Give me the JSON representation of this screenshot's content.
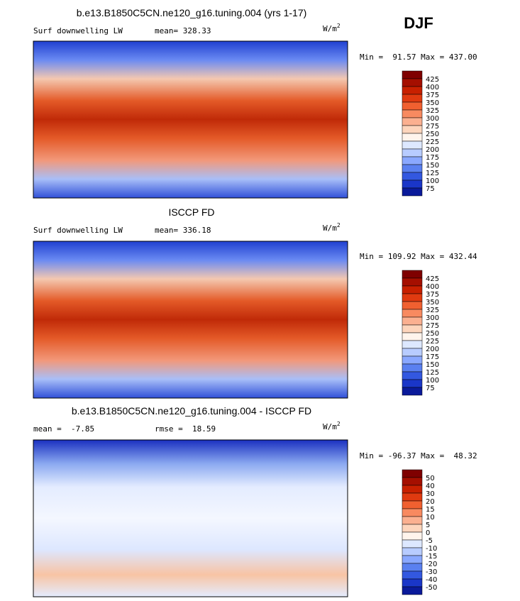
{
  "season": "DJF",
  "panels": [
    {
      "title": "b.e13.B1850C5CN.ne120_g16.tuning.004 (yrs 1-17)",
      "left_label": "Surf downwelling LW",
      "stat": "mean= 328.33",
      "units": "W/m",
      "units_sup": "2",
      "min_max": "Min =  91.57 Max = 437.00",
      "levels": [
        425,
        400,
        375,
        350,
        325,
        300,
        275,
        250,
        225,
        200,
        175,
        150,
        125,
        100,
        75
      ],
      "colors": [
        "#7f0000",
        "#a50f00",
        "#c82000",
        "#e03a10",
        "#f06030",
        "#f88a60",
        "#fbb090",
        "#fdd5bc",
        "#fff4ec",
        "#dde8ff",
        "#b8ccff",
        "#8aa8ff",
        "#5a80f0",
        "#3358e0",
        "#1a36c8",
        "#0a1a9a"
      ]
    },
    {
      "title": "ISCCP FD",
      "left_label": "Surf downwelling LW",
      "stat": "mean= 336.18",
      "units": "W/m",
      "units_sup": "2",
      "min_max": "Min = 109.92 Max = 432.44",
      "levels": [
        425,
        400,
        375,
        350,
        325,
        300,
        275,
        250,
        225,
        200,
        175,
        150,
        125,
        100,
        75
      ],
      "colors": [
        "#7f0000",
        "#a50f00",
        "#c82000",
        "#e03a10",
        "#f06030",
        "#f88a60",
        "#fbb090",
        "#fdd5bc",
        "#fff4ec",
        "#dde8ff",
        "#b8ccff",
        "#8aa8ff",
        "#5a80f0",
        "#3358e0",
        "#1a36c8",
        "#0a1a9a"
      ]
    },
    {
      "title": "b.e13.B1850C5CN.ne120_g16.tuning.004 - ISCCP FD",
      "left_label": "mean =  -7.85",
      "stat": "rmse =  18.59",
      "units": "W/m",
      "units_sup": "2",
      "min_max": "Min = -96.37 Max =  48.32",
      "levels": [
        50,
        40,
        30,
        20,
        15,
        10,
        5,
        0,
        -5,
        -10,
        -15,
        -20,
        -30,
        -40,
        -50
      ],
      "colors": [
        "#7f0000",
        "#a50f00",
        "#c82000",
        "#e03a10",
        "#f06030",
        "#f88a60",
        "#fbb090",
        "#fdd5bc",
        "#fff4ec",
        "#dde8ff",
        "#b8ccff",
        "#8aa8ff",
        "#5a80f0",
        "#3358e0",
        "#1a36c8",
        "#0a1a9a"
      ]
    }
  ]
}
